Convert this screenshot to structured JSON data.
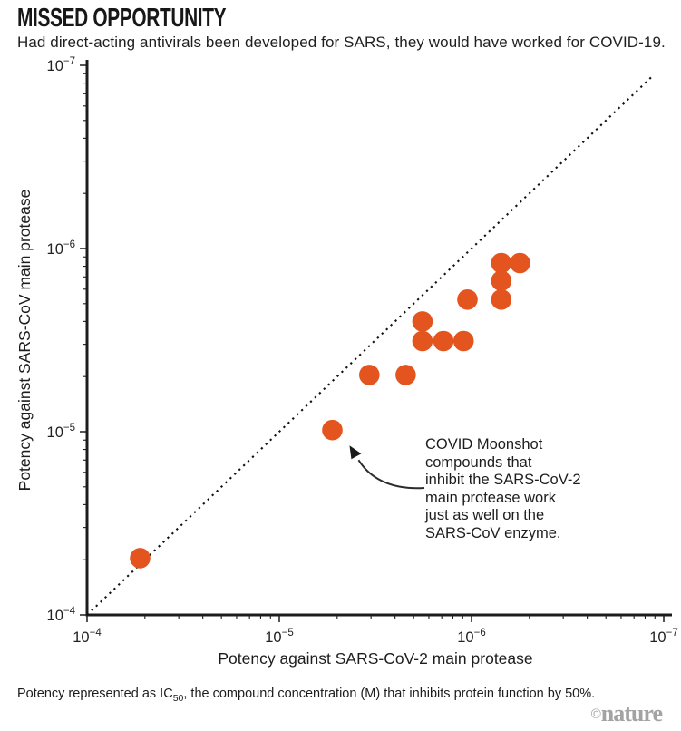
{
  "chart_data": {
    "type": "scatter",
    "title": "MISSED OPPORTUNITY",
    "subtitle": "Had direct-acting antivirals been developed for SARS, they would have worked for COVID-19.",
    "xlabel": "Potency against SARS-CoV-2 main protease",
    "ylabel": "Potency against SARS-CoV main protease",
    "grid": false,
    "legend": "none",
    "marker_color": "#E4541E",
    "axis_color": "#1c1c1c",
    "x_axis": {
      "scale": "log",
      "direction": "reversed: 1e-4 at left to 1e-7 at right",
      "range": [
        0.0001,
        1e-07
      ],
      "ticks": [
        {
          "base": "10",
          "exp": "−4",
          "value": 0.0001
        },
        {
          "base": "10",
          "exp": "−5",
          "value": 1e-05
        },
        {
          "base": "10",
          "exp": "−6",
          "value": 1e-06
        },
        {
          "base": "10",
          "exp": "−7",
          "value": 1e-07
        }
      ]
    },
    "y_axis": {
      "scale": "log",
      "direction": "reversed: 1e-4 at bottom to 1e-7 at top",
      "range": [
        0.0001,
        1e-07
      ],
      "ticks": [
        {
          "base": "10",
          "exp": "−7",
          "value": 1e-07
        },
        {
          "base": "10",
          "exp": "−6",
          "value": 1e-06
        },
        {
          "base": "10",
          "exp": "−5",
          "value": 1e-05
        },
        {
          "base": "10",
          "exp": "−4",
          "value": 0.0001
        }
      ]
    },
    "points_unit": "IC50 concentration (M)",
    "points": [
      [
        5.3e-05,
        4.9e-05
      ],
      [
        5.3e-06,
        9.8e-06
      ],
      [
        3.4e-06,
        4.9e-06
      ],
      [
        2.2e-06,
        4.9e-06
      ],
      [
        1.8e-06,
        2.5e-06
      ],
      [
        1.8e-06,
        3.2e-06
      ],
      [
        1.4e-06,
        3.2e-06
      ],
      [
        1.1e-06,
        3.2e-06
      ],
      [
        1.05e-06,
        1.9e-06
      ],
      [
        7e-07,
        1.2e-06
      ],
      [
        5.6e-07,
        1.2e-06
      ],
      [
        7e-07,
        1.5e-06
      ],
      [
        7e-07,
        1.9e-06
      ]
    ],
    "identity_line": {
      "style": "dotted",
      "meaning": "equal potency on both enzymes (y = x)",
      "from": [
        0.0001,
        0.0001
      ],
      "to": [
        1.15e-07,
        1.15e-07
      ]
    },
    "annotation": {
      "lines": [
        "COVID Moonshot",
        "compounds that",
        "inhibit the SARS-CoV-2",
        "main protease work",
        "just as well on the",
        "SARS-CoV enzyme."
      ],
      "points_to": [
        5.3e-06,
        9.8e-06
      ]
    },
    "footnote": {
      "pre": "Potency represented as IC",
      "sub": "50",
      "post": ", the compound concentration (M) that inhibits protein function by 50%."
    },
    "credit": {
      "symbol": "©",
      "name": "nature"
    }
  }
}
